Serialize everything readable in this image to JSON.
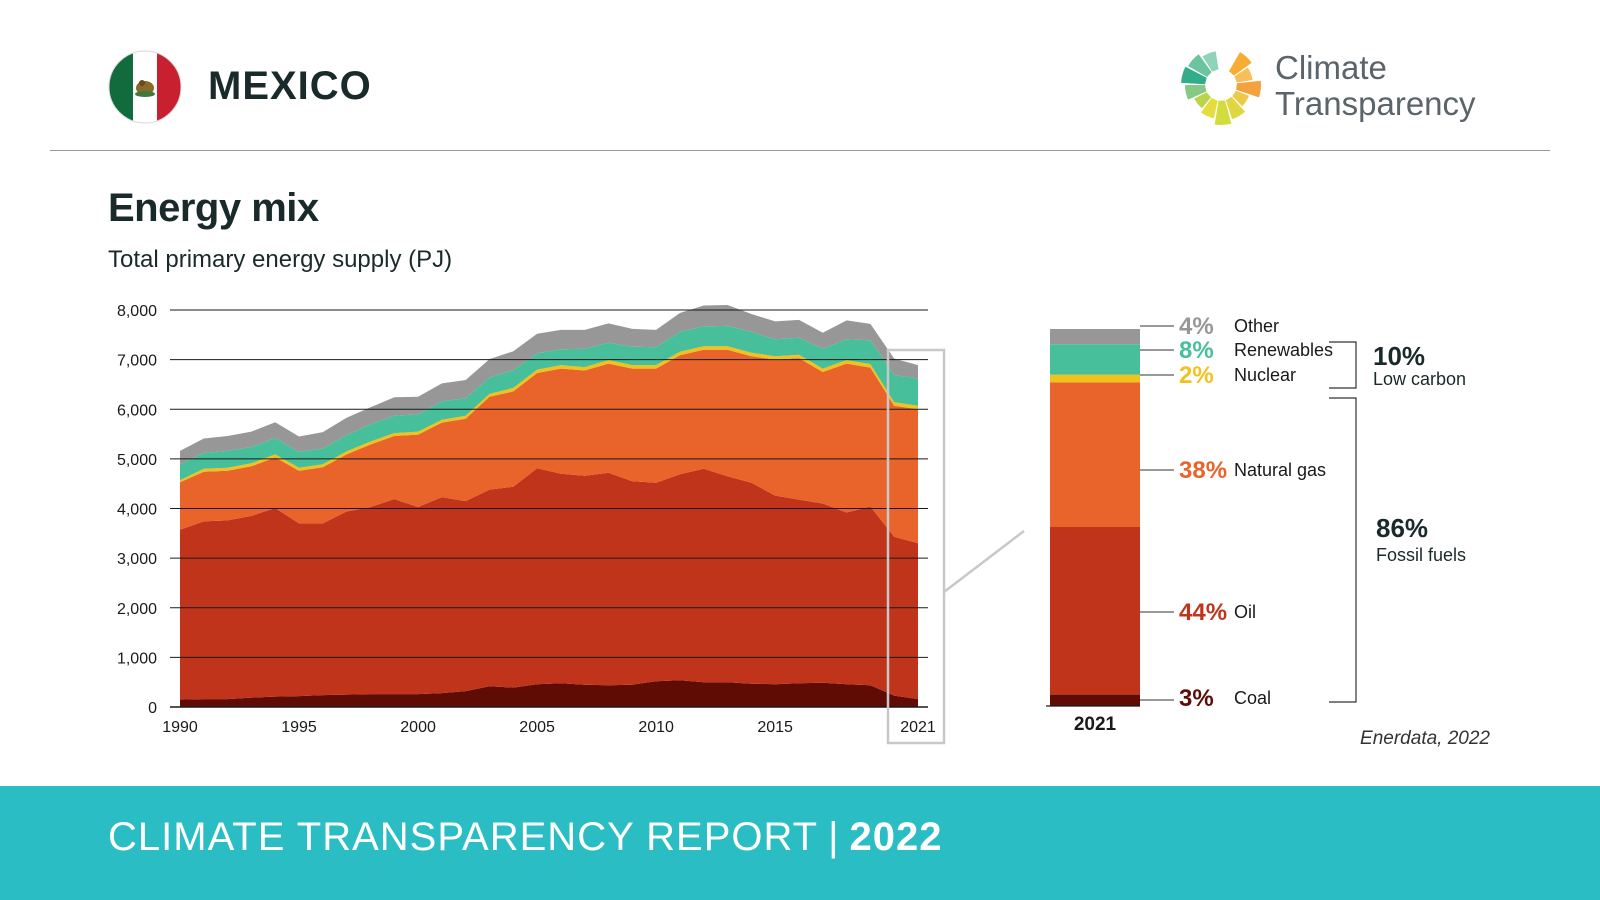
{
  "header": {
    "country": "MEXICO",
    "brand_line1": "Climate",
    "brand_line2": "Transparency"
  },
  "section": {
    "title": "Energy mix",
    "subtitle": "Total primary energy supply (PJ)"
  },
  "source": "Enerdata, 2022",
  "footer": {
    "report": "CLIMATE TRANSPARENCY REPORT",
    "separator": "|",
    "year": "2022"
  },
  "colors": {
    "coal": "#5e0c04",
    "oil": "#c0341c",
    "natural_gas": "#e8642a",
    "nuclear": "#f1c21c",
    "renewables": "#47bf9a",
    "other": "#979797",
    "footer": "#2abdc4",
    "flag_green": "#126b3c",
    "flag_red": "#c8202f"
  },
  "icons": {
    "flag": "mexico-flag-icon",
    "logo": "climate-transparency-logo-icon"
  },
  "chart_data": [
    {
      "type": "area",
      "stacked": true,
      "title": "",
      "xlabel": "",
      "ylabel": "",
      "ylim": [
        0,
        8000
      ],
      "yticks": [
        "0",
        "1,000",
        "2,000",
        "3,000",
        "4,000",
        "5,000",
        "6,000",
        "7,000",
        "8,000"
      ],
      "xticks": [
        "1990",
        "1995",
        "2000",
        "2005",
        "2010",
        "2015",
        "2021"
      ],
      "grid": true,
      "highlight_year": "2021",
      "x": [
        1990,
        1991,
        1992,
        1993,
        1994,
        1995,
        1996,
        1997,
        1998,
        1999,
        2000,
        2001,
        2002,
        2003,
        2004,
        2005,
        2006,
        2007,
        2008,
        2009,
        2010,
        2011,
        2012,
        2013,
        2014,
        2015,
        2016,
        2017,
        2018,
        2019,
        2020,
        2021
      ],
      "series": [
        {
          "key": "coal",
          "values": [
            150,
            160,
            160,
            190,
            210,
            220,
            240,
            250,
            260,
            260,
            260,
            280,
            320,
            420,
            390,
            460,
            480,
            450,
            440,
            450,
            520,
            540,
            500,
            500,
            470,
            460,
            480,
            490,
            460,
            440,
            230,
            160
          ]
        },
        {
          "key": "oil",
          "values": [
            3420,
            3580,
            3600,
            3660,
            3800,
            3480,
            3460,
            3690,
            3770,
            3930,
            3770,
            3950,
            3830,
            3960,
            4050,
            4350,
            4220,
            4210,
            4280,
            4100,
            4000,
            4150,
            4300,
            4150,
            4050,
            3800,
            3700,
            3610,
            3460,
            3600,
            3200,
            3140
          ]
        },
        {
          "key": "natural_gas",
          "values": [
            960,
            1000,
            1000,
            1000,
            1020,
            1060,
            1130,
            1150,
            1260,
            1270,
            1460,
            1500,
            1660,
            1870,
            1920,
            1920,
            2120,
            2120,
            2200,
            2270,
            2300,
            2400,
            2400,
            2550,
            2550,
            2740,
            2850,
            2650,
            3000,
            2800,
            2640,
            2700
          ]
        },
        {
          "key": "nuclear",
          "values": [
            40,
            60,
            60,
            60,
            60,
            60,
            60,
            60,
            60,
            60,
            60,
            60,
            60,
            60,
            70,
            70,
            70,
            70,
            70,
            70,
            70,
            70,
            70,
            70,
            70,
            70,
            70,
            70,
            70,
            70,
            70,
            70
          ]
        },
        {
          "key": "renewables",
          "values": [
            320,
            320,
            340,
            330,
            330,
            320,
            320,
            330,
            350,
            350,
            350,
            370,
            350,
            330,
            360,
            330,
            320,
            370,
            350,
            370,
            360,
            400,
            400,
            410,
            420,
            340,
            340,
            400,
            420,
            480,
            550,
            550
          ]
        },
        {
          "key": "other",
          "values": [
            270,
            290,
            300,
            310,
            320,
            310,
            330,
            350,
            340,
            370,
            350,
            360,
            370,
            370,
            380,
            390,
            390,
            380,
            390,
            360,
            350,
            380,
            420,
            420,
            360,
            360,
            360,
            320,
            380,
            330,
            330,
            270
          ]
        }
      ]
    },
    {
      "type": "bar",
      "stacked": true,
      "categories": [
        "2021"
      ],
      "unit": "%",
      "segments": [
        {
          "key": "coal",
          "label": "Coal",
          "pct_label": "3%",
          "value": 3
        },
        {
          "key": "oil",
          "label": "Oil",
          "pct_label": "44%",
          "value": 44
        },
        {
          "key": "natural_gas",
          "label": "Natural gas",
          "pct_label": "38%",
          "value": 38
        },
        {
          "key": "nuclear",
          "label": "Nuclear",
          "pct_label": "2%",
          "value": 2
        },
        {
          "key": "renewables",
          "label": "Renewables",
          "pct_label": "8%",
          "value": 8
        },
        {
          "key": "other",
          "label": "Other",
          "pct_label": "4%",
          "value": 4
        }
      ],
      "groups": [
        {
          "key": "low_carbon",
          "pct_label": "10%",
          "label": "Low carbon",
          "members": [
            "nuclear",
            "renewables"
          ]
        },
        {
          "key": "fossil",
          "pct_label": "86%",
          "label": "Fossil fuels",
          "members": [
            "coal",
            "oil",
            "natural_gas"
          ]
        }
      ]
    }
  ]
}
